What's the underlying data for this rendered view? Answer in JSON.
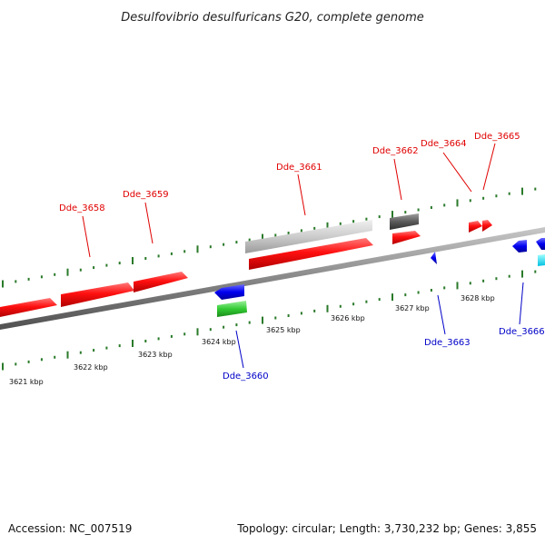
{
  "title": "Desulfovibrio desulfuricans G20, complete genome",
  "footer": {
    "accession": "Accession: NC_007519",
    "topology": "Topology: circular; Length: 3,730,232 bp; Genes: 3,855"
  },
  "colors": {
    "forward_gene": "#e00000",
    "reverse_gene": "#0000e0",
    "label_forward": "#e00000",
    "label_reverse": "#0000c8",
    "tick": "#2a7a2a",
    "backbone": "#808080",
    "pseudo_light": "#c8c8c8",
    "pseudo_dark": "#606060",
    "green_feature": "#33bb33",
    "cyan_feature": "#00e0f0"
  },
  "scale_labels": [
    "3621 kbp",
    "3622 kbp",
    "3623 kbp",
    "3624 kbp",
    "3625 kbp",
    "3626 kbp",
    "3627 kbp",
    "3628 kbp"
  ],
  "gene_labels_top": [
    "Dde_3658",
    "Dde_3659",
    "Dde_3661",
    "Dde_3662",
    "Dde_3664",
    "Dde_3665"
  ],
  "gene_labels_bottom": [
    "Dde_3660",
    "Dde_3663",
    "Dde_3666"
  ]
}
